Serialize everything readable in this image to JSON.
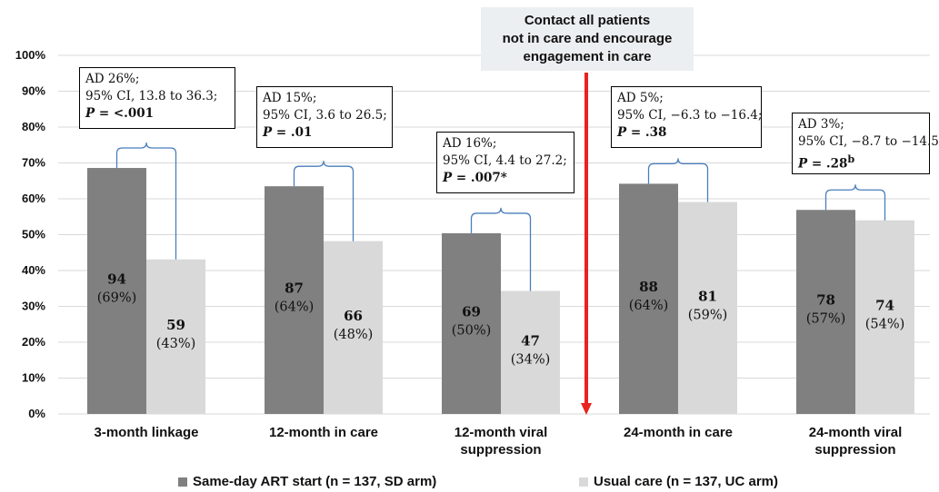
{
  "chart_data": {
    "type": "bar",
    "ylim": [
      0,
      100
    ],
    "y_ticks": [
      "0%",
      "10%",
      "20%",
      "30%",
      "40%",
      "50%",
      "60%",
      "70%",
      "80%",
      "90%",
      "100%"
    ],
    "categories": [
      "3-month linkage",
      "12-month in care",
      "12-month viral suppression",
      "24-month in care",
      "24-month viral suppression"
    ],
    "category_lines": [
      [
        "3-month linkage"
      ],
      [
        "12-month in care"
      ],
      [
        "12-month viral",
        "suppression"
      ],
      [
        "24-month in care"
      ],
      [
        "24-month viral",
        "suppression"
      ]
    ],
    "series": [
      {
        "name": "Same-day ART start (n = 137, SD arm)",
        "color": "#808080",
        "values": [
          68.6,
          63.5,
          50.4,
          64.2,
          56.9
        ],
        "counts": [
          "94",
          "87",
          "69",
          "88",
          "78"
        ],
        "percent_labels": [
          "(69%)",
          "(64%)",
          "(50%)",
          "(64%)",
          "(57%)"
        ]
      },
      {
        "name": "Usual care (n = 137, UC arm)",
        "color": "#d9d9d9",
        "values": [
          43.1,
          48.2,
          34.3,
          59.1,
          54.0
        ],
        "counts": [
          "59",
          "66",
          "47",
          "81",
          "74"
        ],
        "percent_labels": [
          "(43%)",
          "(48%)",
          "(34%)",
          "(59%)",
          "(54%)"
        ]
      }
    ],
    "annotations": [
      {
        "line1": "AD 26%;",
        "line2": "95% CI, 13.8 to 36.3;",
        "p_label": "P",
        "p_text": " = <.001",
        "p_sup": ""
      },
      {
        "line1": "AD 15%;",
        "line2": "95% CI, 3.6 to 26.5;",
        "p_label": "P",
        "p_text": " = .01",
        "p_sup": ""
      },
      {
        "line1": "AD 16%;",
        "line2": "95% CI, 4.4 to 27.2;",
        "p_label": "P",
        "p_text": " = .007*",
        "p_sup": ""
      },
      {
        "line1": "AD 5%;",
        "line2": "95% CI, −6.3 to −16.4;",
        "p_label": "P",
        "p_text": " = .38",
        "p_sup": ""
      },
      {
        "line1": "AD 3%;",
        "line2": "95% CI, −8.7 to −14.5",
        "p_label": "P",
        "p_text": " = .28",
        "p_sup": "b"
      }
    ],
    "callout": [
      "Contact all patients",
      "not in care and encourage",
      "engagement in care"
    ],
    "colors": {
      "marker_line": "#e8231f",
      "bracket": "#4a7ebb"
    }
  }
}
